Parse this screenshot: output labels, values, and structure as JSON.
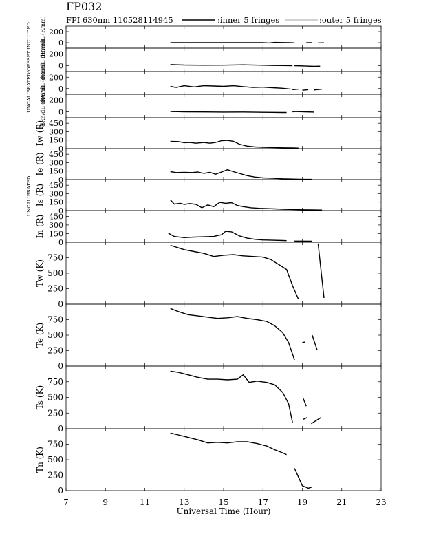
{
  "header": {
    "title": "FP032",
    "subtitle": "FPI 630nm 110528114945",
    "legend_inner": ":inner 5 fringes",
    "legend_outer": ":outer 5 fringes"
  },
  "side_labels": {
    "top": "UNCALIBRATED/OFFSET INCLUDED",
    "middle": "UNCALIBRATED"
  },
  "xaxis": {
    "label": "Universal Time (Hour)",
    "range": [
      7,
      23
    ],
    "ticks": [
      7,
      9,
      11,
      13,
      15,
      17,
      19,
      21,
      23
    ]
  },
  "chart_data": [
    {
      "type": "line",
      "ylabel": "dRw/dL (R/nm)",
      "ylim": [
        -100,
        300
      ],
      "yticks": [
        0,
        200
      ],
      "series": [
        {
          "values": [
            [
              12.3,
              0
            ],
            [
              13,
              0
            ],
            [
              14,
              1
            ],
            [
              15,
              0
            ],
            [
              16,
              1
            ],
            [
              17,
              0
            ],
            [
              17.3,
              -5
            ],
            [
              17.6,
              5
            ],
            [
              18,
              2
            ],
            [
              18.3,
              0
            ],
            [
              18.6,
              -2
            ]
          ]
        },
        {
          "values": [
            [
              19.2,
              0
            ],
            [
              19.5,
              0
            ]
          ]
        },
        {
          "values": [
            [
              19.8,
              -4
            ],
            [
              20.1,
              -2
            ]
          ]
        }
      ]
    },
    {
      "type": "line",
      "ylabel": "dRe/dL (R/nm)",
      "ylim": [
        -100,
        300
      ],
      "yticks": [
        0,
        200
      ],
      "series": [
        {
          "values": [
            [
              12.3,
              20
            ],
            [
              13,
              12
            ],
            [
              14,
              8
            ],
            [
              15,
              10
            ],
            [
              16,
              15
            ],
            [
              17,
              8
            ],
            [
              17.5,
              4
            ],
            [
              18,
              2
            ],
            [
              18.5,
              0
            ]
          ]
        },
        {
          "values": [
            [
              18.6,
              0
            ],
            [
              19.1,
              -5
            ],
            [
              19.6,
              -12
            ],
            [
              19.9,
              -8
            ]
          ]
        }
      ]
    },
    {
      "type": "line",
      "ylabel": "dRs/dL (R/nm)",
      "ylim": [
        -100,
        300
      ],
      "yticks": [
        0,
        200
      ],
      "series": [
        {
          "values": [
            [
              12.3,
              40
            ],
            [
              12.6,
              20
            ],
            [
              13,
              50
            ],
            [
              13.5,
              30
            ],
            [
              14,
              50
            ],
            [
              14.5,
              45
            ],
            [
              15,
              40
            ],
            [
              15.5,
              50
            ],
            [
              16,
              35
            ],
            [
              16.5,
              20
            ],
            [
              17,
              25
            ],
            [
              17.5,
              15
            ],
            [
              18,
              5
            ],
            [
              18.4,
              -10
            ]
          ]
        },
        {
          "values": [
            [
              18.5,
              -20
            ],
            [
              18.8,
              -10
            ]
          ]
        },
        {
          "values": [
            [
              19.0,
              -30
            ],
            [
              19.3,
              -20
            ]
          ]
        },
        {
          "values": [
            [
              19.6,
              -25
            ],
            [
              20.0,
              -10
            ]
          ]
        }
      ]
    },
    {
      "type": "line",
      "ylabel": "dRn/dL (R/nm)",
      "ylim": [
        -100,
        300
      ],
      "yticks": [
        0,
        200
      ],
      "series": [
        {
          "values": [
            [
              12.3,
              5
            ],
            [
              13,
              0
            ],
            [
              14,
              -2
            ],
            [
              15,
              -5
            ],
            [
              16,
              -3
            ],
            [
              17,
              -8
            ],
            [
              17.5,
              -10
            ],
            [
              18,
              -12
            ],
            [
              18.2,
              -12
            ]
          ]
        },
        {
          "values": [
            [
              18.5,
              0
            ],
            [
              18.6,
              5
            ],
            [
              19.1,
              0
            ],
            [
              19.6,
              -5
            ]
          ]
        }
      ]
    },
    {
      "type": "line",
      "ylabel": "Iw (R)",
      "ylim": [
        0,
        550
      ],
      "yticks": [
        0,
        150,
        300,
        450
      ],
      "series": [
        {
          "values": [
            [
              12.3,
              130
            ],
            [
              12.7,
              125
            ],
            [
              13,
              105
            ],
            [
              13.3,
              110
            ],
            [
              13.6,
              95
            ],
            [
              14,
              110
            ],
            [
              14.3,
              95
            ],
            [
              14.6,
              110
            ],
            [
              14.9,
              140
            ],
            [
              15.2,
              145
            ],
            [
              15.5,
              130
            ],
            [
              15.8,
              80
            ],
            [
              16.2,
              45
            ],
            [
              16.6,
              30
            ],
            [
              17,
              25
            ],
            [
              17.5,
              20
            ],
            [
              18,
              15
            ],
            [
              18.5,
              12
            ],
            [
              18.8,
              10
            ]
          ]
        }
      ]
    },
    {
      "type": "line",
      "ylabel": "Ie (R)",
      "ylim": [
        0,
        550
      ],
      "yticks": [
        0,
        150,
        300,
        450
      ],
      "series": [
        {
          "values": [
            [
              12.3,
              140
            ],
            [
              12.6,
              125
            ],
            [
              13,
              130
            ],
            [
              13.4,
              125
            ],
            [
              13.7,
              135
            ],
            [
              14,
              110
            ],
            [
              14.3,
              130
            ],
            [
              14.6,
              95
            ],
            [
              14.9,
              135
            ],
            [
              15.2,
              175
            ],
            [
              15.5,
              140
            ],
            [
              15.8,
              110
            ],
            [
              16.2,
              70
            ],
            [
              16.6,
              45
            ],
            [
              17,
              30
            ],
            [
              17.5,
              25
            ],
            [
              18,
              15
            ],
            [
              18.5,
              10
            ],
            [
              19,
              5
            ],
            [
              19.5,
              5
            ]
          ]
        }
      ]
    },
    {
      "type": "line",
      "ylabel": "Is (R)",
      "ylim": [
        0,
        550
      ],
      "yticks": [
        0,
        150,
        300,
        450
      ],
      "series": [
        {
          "values": [
            [
              12.3,
              190
            ],
            [
              12.5,
              115
            ],
            [
              12.8,
              130
            ],
            [
              13,
              110
            ],
            [
              13.3,
              125
            ],
            [
              13.6,
              110
            ],
            [
              13.9,
              50
            ],
            [
              14.2,
              100
            ],
            [
              14.5,
              70
            ],
            [
              14.8,
              145
            ],
            [
              15.1,
              130
            ],
            [
              15.4,
              140
            ],
            [
              15.7,
              90
            ],
            [
              16,
              70
            ],
            [
              16.4,
              50
            ],
            [
              16.8,
              40
            ],
            [
              17.2,
              35
            ],
            [
              17.6,
              30
            ],
            [
              18,
              25
            ],
            [
              18.5,
              20
            ],
            [
              19,
              15
            ],
            [
              19.5,
              12
            ],
            [
              20,
              10
            ]
          ]
        }
      ]
    },
    {
      "type": "line",
      "ylabel": "In (R)",
      "ylim": [
        0,
        550
      ],
      "yticks": [
        0,
        150,
        300,
        450
      ],
      "series": [
        {
          "values": [
            [
              12.2,
              155
            ],
            [
              12.5,
              100
            ],
            [
              13,
              80
            ],
            [
              13.5,
              90
            ],
            [
              14,
              95
            ],
            [
              14.5,
              100
            ],
            [
              14.9,
              130
            ],
            [
              15.1,
              190
            ],
            [
              15.4,
              180
            ],
            [
              15.8,
              110
            ],
            [
              16.2,
              70
            ],
            [
              16.6,
              50
            ],
            [
              17,
              40
            ],
            [
              17.5,
              35
            ],
            [
              18,
              30
            ],
            [
              18.2,
              28
            ]
          ]
        },
        {
          "values": [
            [
              18.6,
              20
            ],
            [
              19.5,
              18
            ]
          ]
        }
      ]
    },
    {
      "type": "line",
      "ylabel": "Tw (K)",
      "ylim": [
        0,
        1000
      ],
      "yticks": [
        0,
        250,
        500,
        750
      ],
      "series": [
        {
          "values": [
            [
              12.3,
              950
            ],
            [
              13,
              880
            ],
            [
              13.5,
              850
            ],
            [
              14,
              820
            ],
            [
              14.5,
              770
            ],
            [
              15,
              790
            ],
            [
              15.5,
              800
            ],
            [
              16,
              780
            ],
            [
              16.5,
              770
            ],
            [
              17,
              760
            ],
            [
              17.4,
              720
            ],
            [
              17.8,
              640
            ],
            [
              18.2,
              560
            ],
            [
              18.5,
              300
            ],
            [
              18.8,
              80
            ]
          ]
        },
        {
          "values": [
            [
              19.8,
              980
            ],
            [
              20.1,
              100
            ]
          ]
        }
      ]
    },
    {
      "type": "line",
      "ylabel": "Te (K)",
      "ylim": [
        0,
        1000
      ],
      "yticks": [
        0,
        250,
        500,
        750
      ],
      "series": [
        {
          "values": [
            [
              12.3,
              930
            ],
            [
              12.7,
              880
            ],
            [
              13.2,
              830
            ],
            [
              13.7,
              810
            ],
            [
              14.2,
              790
            ],
            [
              14.7,
              770
            ],
            [
              15.2,
              780
            ],
            [
              15.7,
              800
            ],
            [
              16.2,
              770
            ],
            [
              16.7,
              750
            ],
            [
              17.2,
              720
            ],
            [
              17.6,
              650
            ],
            [
              18,
              540
            ],
            [
              18.3,
              380
            ],
            [
              18.6,
              100
            ]
          ]
        },
        {
          "values": [
            [
              19.0,
              380
            ],
            [
              19.15,
              390
            ]
          ]
        },
        {
          "values": [
            [
              19.5,
              500
            ],
            [
              19.75,
              260
            ]
          ]
        }
      ]
    },
    {
      "type": "line",
      "ylabel": "Ts (K)",
      "ylim": [
        0,
        1000
      ],
      "yticks": [
        0,
        250,
        500,
        750
      ],
      "series": [
        {
          "values": [
            [
              12.3,
              920
            ],
            [
              12.7,
              900
            ],
            [
              13.2,
              860
            ],
            [
              13.7,
              820
            ],
            [
              14.2,
              790
            ],
            [
              14.7,
              790
            ],
            [
              15.2,
              780
            ],
            [
              15.7,
              790
            ],
            [
              16,
              860
            ],
            [
              16.3,
              740
            ],
            [
              16.7,
              760
            ],
            [
              17.2,
              740
            ],
            [
              17.6,
              700
            ],
            [
              18,
              580
            ],
            [
              18.3,
              400
            ],
            [
              18.5,
              100
            ]
          ]
        },
        {
          "values": [
            [
              19.05,
              480
            ],
            [
              19.2,
              360
            ]
          ]
        },
        {
          "values": [
            [
              19.05,
              150
            ],
            [
              19.25,
              180
            ]
          ]
        },
        {
          "values": [
            [
              19.45,
              80
            ],
            [
              19.95,
              180
            ]
          ]
        }
      ]
    },
    {
      "type": "line",
      "ylabel": "Tn (K)",
      "ylim": [
        0,
        1000
      ],
      "yticks": [
        0,
        250,
        500,
        750
      ],
      "series": [
        {
          "values": [
            [
              12.3,
              930
            ],
            [
              12.7,
              900
            ],
            [
              13.2,
              860
            ],
            [
              13.7,
              820
            ],
            [
              14.2,
              770
            ],
            [
              14.7,
              780
            ],
            [
              15.2,
              770
            ],
            [
              15.7,
              790
            ],
            [
              16.2,
              790
            ],
            [
              16.7,
              760
            ],
            [
              17.2,
              720
            ],
            [
              17.6,
              660
            ],
            [
              18,
              610
            ],
            [
              18.2,
              580
            ]
          ]
        },
        {
          "values": [
            [
              18.6,
              360
            ],
            [
              18.8,
              220
            ],
            [
              19,
              80
            ],
            [
              19.3,
              40
            ],
            [
              19.5,
              60
            ]
          ]
        }
      ]
    }
  ]
}
